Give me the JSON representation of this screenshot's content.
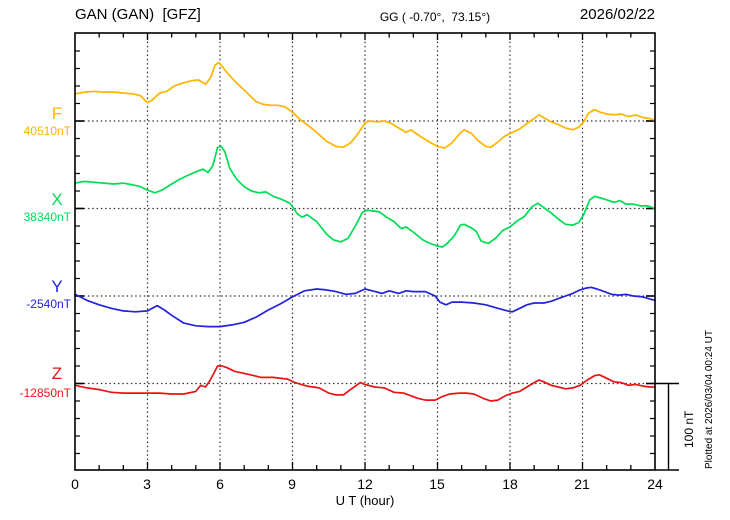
{
  "header": {
    "station_title": "GAN (GAN)  [GFZ]",
    "coords": "GG ( -0.70°,  73.15°)",
    "date": "2026/02/22"
  },
  "channels": [
    {
      "label": "F",
      "value_label": "40510nT",
      "color": "#FFB400"
    },
    {
      "label": "X",
      "value_label": "38340nT",
      "color": "#00DD55"
    },
    {
      "label": "Y",
      "value_label": "-2540nT",
      "color": "#2222DD"
    },
    {
      "label": "Z",
      "value_label": "-12850nT",
      "color": "#E81414"
    }
  ],
  "axis": {
    "x_ticks": [
      "0",
      "3",
      "6",
      "9",
      "12",
      "15",
      "18",
      "21",
      "24"
    ],
    "x_label": "U T (hour)"
  },
  "scale_bar": {
    "label": "100 nT"
  },
  "footer_note": "Plotted at 2026/03/04 00:24 UT",
  "chart_data": {
    "type": "line",
    "title": "GAN (GAN)  [GFZ] magnetogram 2026/02/22",
    "xlabel": "U T (hour)",
    "x_range": [
      0,
      24
    ],
    "x_major_tick_step": 3,
    "x_minor_tick_step": 1,
    "nT_per_division": 100,
    "grid": "dotted baselines and 3-hour verticals",
    "legend_position": "left margin, one baseline per channel",
    "series": [
      {
        "name": "F",
        "base_value": 40510,
        "color": "#FFB400",
        "points": [
          [
            0,
            40541
          ],
          [
            0.4,
            40543
          ],
          [
            0.8,
            40544
          ],
          [
            1.2,
            40543
          ],
          [
            1.6,
            40543
          ],
          [
            2,
            40542
          ],
          [
            2.4,
            40541
          ],
          [
            2.7,
            40539
          ],
          [
            3,
            40531
          ],
          [
            3.2,
            40534
          ],
          [
            3.5,
            40542
          ],
          [
            3.8,
            40544
          ],
          [
            4.1,
            40550
          ],
          [
            4.4,
            40553
          ],
          [
            4.8,
            40556
          ],
          [
            5.1,
            40557
          ],
          [
            5.4,
            40552
          ],
          [
            5.6,
            40559
          ],
          [
            5.8,
            40574
          ],
          [
            5.95,
            40577
          ],
          [
            6.1,
            40572
          ],
          [
            6.3,
            40565
          ],
          [
            6.6,
            40556
          ],
          [
            6.9,
            40548
          ],
          [
            7.2,
            40540
          ],
          [
            7.5,
            40532
          ],
          [
            7.8,
            40529
          ],
          [
            8.1,
            40528
          ],
          [
            8.4,
            40528
          ],
          [
            8.7,
            40526
          ],
          [
            9,
            40520
          ],
          [
            9.3,
            40512
          ],
          [
            9.6,
            40506
          ],
          [
            10,
            40497
          ],
          [
            10.4,
            40487
          ],
          [
            10.8,
            40481
          ],
          [
            11.1,
            40480
          ],
          [
            11.4,
            40485
          ],
          [
            11.7,
            40495
          ],
          [
            12,
            40508
          ],
          [
            12.2,
            40510
          ],
          [
            12.5,
            40509
          ],
          [
            12.8,
            40510
          ],
          [
            13.1,
            40507
          ],
          [
            13.4,
            40502
          ],
          [
            13.7,
            40497
          ],
          [
            13.9,
            40500
          ],
          [
            14.2,
            40494
          ],
          [
            14.6,
            40487
          ],
          [
            15,
            40481
          ],
          [
            15.3,
            40479
          ],
          [
            15.6,
            40485
          ],
          [
            15.9,
            40495
          ],
          [
            16.1,
            40500
          ],
          [
            16.4,
            40496
          ],
          [
            16.7,
            40487
          ],
          [
            17,
            40481
          ],
          [
            17.2,
            40480
          ],
          [
            17.5,
            40486
          ],
          [
            17.8,
            40493
          ],
          [
            18.1,
            40497
          ],
          [
            18.4,
            40501
          ],
          [
            18.7,
            40507
          ],
          [
            19,
            40513
          ],
          [
            19.2,
            40517
          ],
          [
            19.45,
            40513
          ],
          [
            19.7,
            40509
          ],
          [
            20,
            40506
          ],
          [
            20.3,
            40502
          ],
          [
            20.6,
            40500
          ],
          [
            20.85,
            40503
          ],
          [
            21.05,
            40509
          ],
          [
            21.25,
            40519
          ],
          [
            21.5,
            40523
          ],
          [
            21.75,
            40520
          ],
          [
            22,
            40518
          ],
          [
            22.3,
            40517
          ],
          [
            22.6,
            40518
          ],
          [
            22.9,
            40515
          ],
          [
            23.2,
            40517
          ],
          [
            23.5,
            40514
          ],
          [
            23.75,
            40513
          ],
          [
            24,
            40511
          ]
        ]
      },
      {
        "name": "X",
        "base_value": 38340,
        "color": "#00DD55",
        "points": [
          [
            0,
            38369
          ],
          [
            0.4,
            38371
          ],
          [
            0.8,
            38370
          ],
          [
            1.2,
            38369
          ],
          [
            1.6,
            38368
          ],
          [
            2,
            38369
          ],
          [
            2.4,
            38367
          ],
          [
            2.7,
            38365
          ],
          [
            3,
            38361
          ],
          [
            3.3,
            38358
          ],
          [
            3.6,
            38361
          ],
          [
            4,
            38368
          ],
          [
            4.3,
            38373
          ],
          [
            4.6,
            38377
          ],
          [
            5,
            38382
          ],
          [
            5.3,
            38385
          ],
          [
            5.5,
            38381
          ],
          [
            5.7,
            38389
          ],
          [
            5.9,
            38410
          ],
          [
            6.05,
            38411
          ],
          [
            6.2,
            38405
          ],
          [
            6.4,
            38386
          ],
          [
            6.7,
            38373
          ],
          [
            7,
            38365
          ],
          [
            7.3,
            38360
          ],
          [
            7.6,
            38358
          ],
          [
            7.9,
            38359
          ],
          [
            8.2,
            38354
          ],
          [
            8.5,
            38351
          ],
          [
            8.9,
            38346
          ],
          [
            9.2,
            38334
          ],
          [
            9.4,
            38330
          ],
          [
            9.6,
            38333
          ],
          [
            10,
            38325
          ],
          [
            10.4,
            38311
          ],
          [
            10.7,
            38304
          ],
          [
            11,
            38302
          ],
          [
            11.3,
            38306
          ],
          [
            11.6,
            38320
          ],
          [
            11.9,
            38336
          ],
          [
            12.1,
            38338
          ],
          [
            12.4,
            38337
          ],
          [
            12.6,
            38336
          ],
          [
            12.9,
            38330
          ],
          [
            13.2,
            38325
          ],
          [
            13.5,
            38317
          ],
          [
            13.7,
            38319
          ],
          [
            14,
            38313
          ],
          [
            14.4,
            38304
          ],
          [
            14.7,
            38300
          ],
          [
            15,
            38297
          ],
          [
            15.2,
            38296
          ],
          [
            15.4,
            38300
          ],
          [
            15.7,
            38309
          ],
          [
            15.95,
            38321
          ],
          [
            16.1,
            38322
          ],
          [
            16.4,
            38318
          ],
          [
            16.6,
            38314
          ],
          [
            16.8,
            38303
          ],
          [
            17.1,
            38300
          ],
          [
            17.4,
            38306
          ],
          [
            17.7,
            38315
          ],
          [
            18,
            38319
          ],
          [
            18.3,
            38326
          ],
          [
            18.6,
            38331
          ],
          [
            18.9,
            38342
          ],
          [
            19.15,
            38346
          ],
          [
            19.4,
            38341
          ],
          [
            19.7,
            38335
          ],
          [
            20,
            38328
          ],
          [
            20.3,
            38322
          ],
          [
            20.6,
            38321
          ],
          [
            20.85,
            38324
          ],
          [
            21.05,
            38333
          ],
          [
            21.3,
            38350
          ],
          [
            21.5,
            38354
          ],
          [
            21.75,
            38352
          ],
          [
            22,
            38350
          ],
          [
            22.3,
            38347
          ],
          [
            22.55,
            38349
          ],
          [
            22.8,
            38345
          ],
          [
            23.1,
            38345
          ],
          [
            23.4,
            38343
          ],
          [
            23.7,
            38343
          ],
          [
            24,
            38340
          ]
        ]
      },
      {
        "name": "Y",
        "base_value": -2540,
        "color": "#2222DD",
        "points": [
          [
            0,
            -2538
          ],
          [
            0.5,
            -2545
          ],
          [
            1,
            -2550
          ],
          [
            1.5,
            -2554
          ],
          [
            2,
            -2557
          ],
          [
            2.5,
            -2558
          ],
          [
            3,
            -2557
          ],
          [
            3.4,
            -2551
          ],
          [
            3.7,
            -2556
          ],
          [
            4,
            -2562
          ],
          [
            4.5,
            -2571
          ],
          [
            5,
            -2574
          ],
          [
            5.5,
            -2575
          ],
          [
            6,
            -2575
          ],
          [
            6.5,
            -2573
          ],
          [
            7,
            -2570
          ],
          [
            7.5,
            -2564
          ],
          [
            8,
            -2556
          ],
          [
            8.5,
            -2549
          ],
          [
            9,
            -2541
          ],
          [
            9.5,
            -2534
          ],
          [
            10,
            -2532
          ],
          [
            10.4,
            -2533
          ],
          [
            10.8,
            -2535
          ],
          [
            11.2,
            -2538
          ],
          [
            11.6,
            -2537
          ],
          [
            12,
            -2532
          ],
          [
            12.3,
            -2534
          ],
          [
            12.7,
            -2537
          ],
          [
            13,
            -2534
          ],
          [
            13.4,
            -2537
          ],
          [
            13.7,
            -2534
          ],
          [
            14,
            -2535
          ],
          [
            14.5,
            -2535
          ],
          [
            14.9,
            -2540
          ],
          [
            15.1,
            -2547
          ],
          [
            15.35,
            -2550
          ],
          [
            15.6,
            -2547
          ],
          [
            16,
            -2547
          ],
          [
            16.5,
            -2548
          ],
          [
            17,
            -2550
          ],
          [
            17.5,
            -2554
          ],
          [
            17.9,
            -2557
          ],
          [
            18.1,
            -2558
          ],
          [
            18.4,
            -2554
          ],
          [
            18.7,
            -2550
          ],
          [
            19,
            -2548
          ],
          [
            19.4,
            -2548
          ],
          [
            19.7,
            -2546
          ],
          [
            20,
            -2543
          ],
          [
            20.3,
            -2540
          ],
          [
            20.6,
            -2537
          ],
          [
            20.9,
            -2533
          ],
          [
            21.15,
            -2531
          ],
          [
            21.35,
            -2530
          ],
          [
            21.6,
            -2532
          ],
          [
            21.9,
            -2535
          ],
          [
            22.2,
            -2538
          ],
          [
            22.5,
            -2539
          ],
          [
            22.8,
            -2538
          ],
          [
            23.1,
            -2540
          ],
          [
            23.5,
            -2541
          ],
          [
            24,
            -2545
          ]
        ]
      },
      {
        "name": "Z",
        "base_value": -12850,
        "color": "#E81414",
        "points": [
          [
            0,
            -12852
          ],
          [
            0.5,
            -12855
          ],
          [
            1,
            -12857
          ],
          [
            1.5,
            -12860
          ],
          [
            2,
            -12861
          ],
          [
            2.5,
            -12861
          ],
          [
            3,
            -12861
          ],
          [
            3.5,
            -12861
          ],
          [
            4,
            -12862
          ],
          [
            4.5,
            -12862
          ],
          [
            5,
            -12859
          ],
          [
            5.2,
            -12852
          ],
          [
            5.4,
            -12854
          ],
          [
            5.6,
            -12846
          ],
          [
            5.9,
            -12830
          ],
          [
            6.1,
            -12830
          ],
          [
            6.3,
            -12832
          ],
          [
            6.6,
            -12836
          ],
          [
            7.1,
            -12839
          ],
          [
            7.7,
            -12843
          ],
          [
            8.2,
            -12843
          ],
          [
            8.8,
            -12845
          ],
          [
            9.1,
            -12849
          ],
          [
            9.6,
            -12853
          ],
          [
            10.1,
            -12855
          ],
          [
            10.5,
            -12861
          ],
          [
            10.8,
            -12863
          ],
          [
            11.1,
            -12863
          ],
          [
            11.4,
            -12857
          ],
          [
            11.8,
            -12849
          ],
          [
            12,
            -12851
          ],
          [
            12.4,
            -12854
          ],
          [
            12.8,
            -12855
          ],
          [
            13.2,
            -12860
          ],
          [
            13.6,
            -12861
          ],
          [
            13.9,
            -12864
          ],
          [
            14.2,
            -12867
          ],
          [
            14.5,
            -12869
          ],
          [
            14.9,
            -12869
          ],
          [
            15.2,
            -12865
          ],
          [
            15.5,
            -12862
          ],
          [
            15.9,
            -12861
          ],
          [
            16.2,
            -12861
          ],
          [
            16.5,
            -12862
          ],
          [
            16.9,
            -12867
          ],
          [
            17.2,
            -12870
          ],
          [
            17.5,
            -12869
          ],
          [
            17.8,
            -12864
          ],
          [
            18.1,
            -12861
          ],
          [
            18.4,
            -12859
          ],
          [
            18.7,
            -12854
          ],
          [
            19,
            -12849
          ],
          [
            19.2,
            -12846
          ],
          [
            19.4,
            -12848
          ],
          [
            19.7,
            -12852
          ],
          [
            20,
            -12854
          ],
          [
            20.3,
            -12856
          ],
          [
            20.6,
            -12855
          ],
          [
            20.9,
            -12852
          ],
          [
            21.2,
            -12846
          ],
          [
            21.5,
            -12841
          ],
          [
            21.7,
            -12840
          ],
          [
            22,
            -12844
          ],
          [
            22.3,
            -12848
          ],
          [
            22.6,
            -12849
          ],
          [
            22.9,
            -12852
          ],
          [
            23.2,
            -12851
          ],
          [
            23.5,
            -12853
          ],
          [
            23.8,
            -12854
          ],
          [
            24,
            -12854
          ]
        ]
      }
    ]
  }
}
